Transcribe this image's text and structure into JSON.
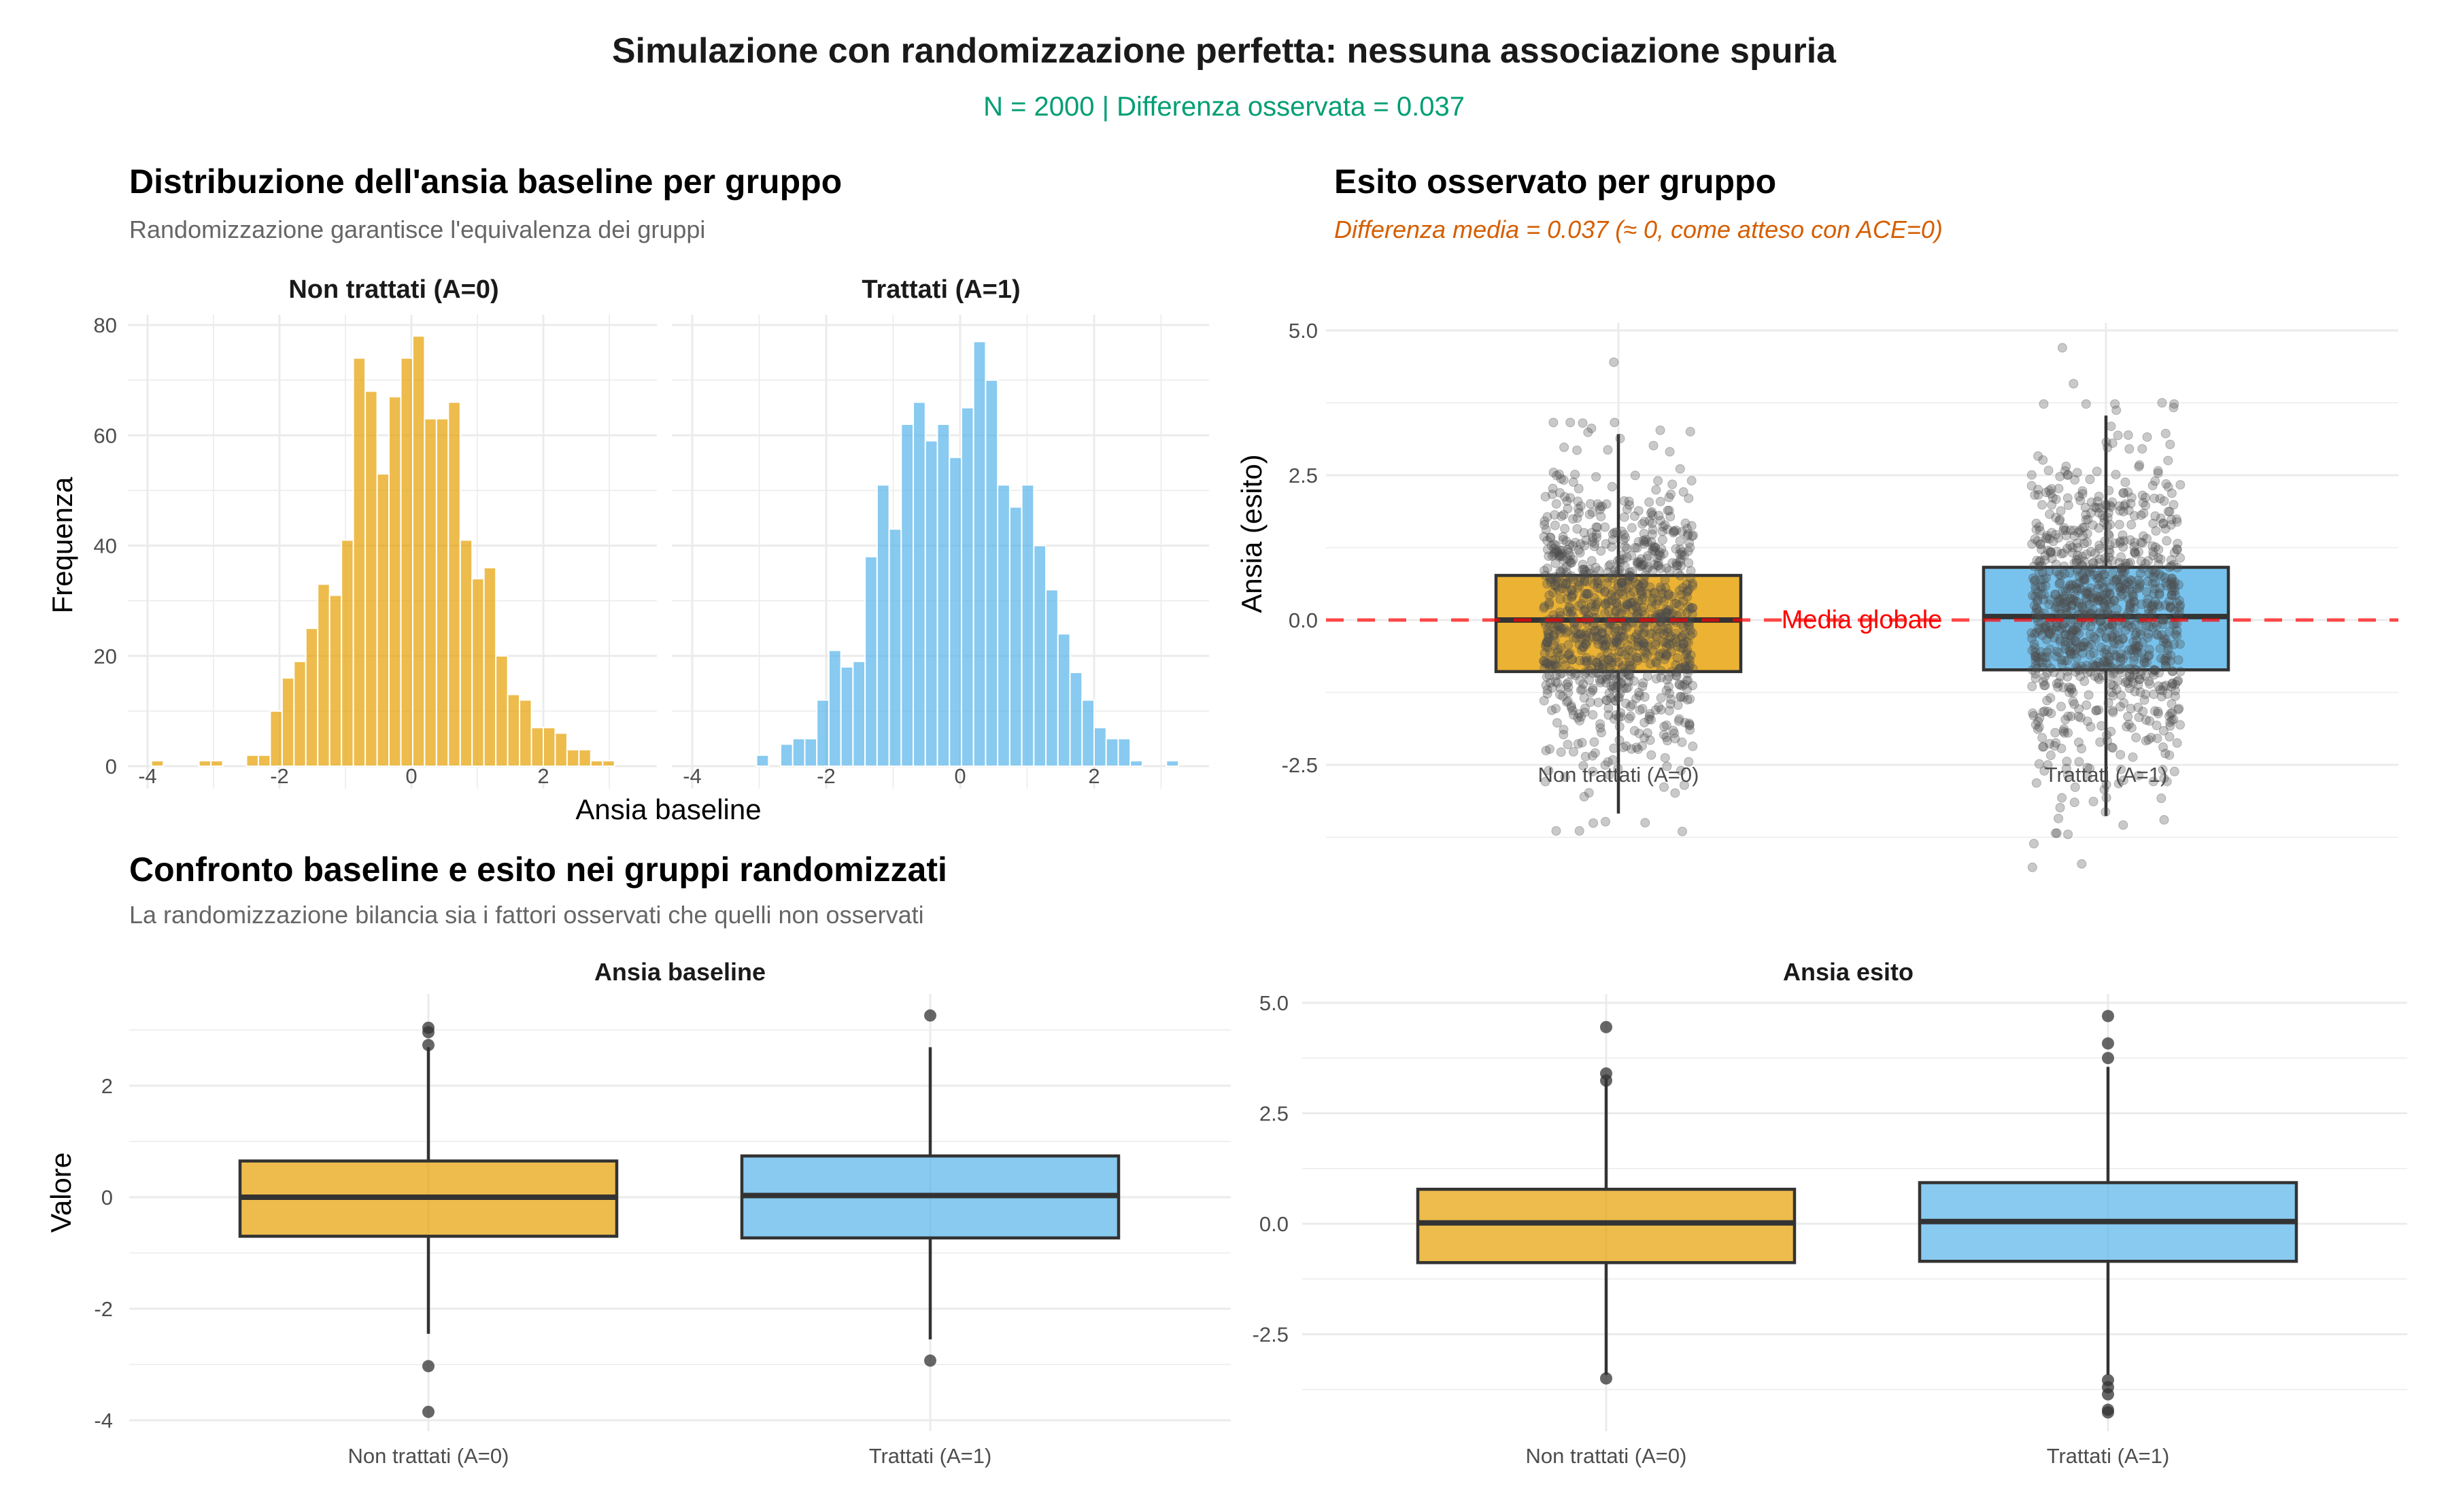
{
  "header": {
    "title": "Simulazione con randomizzazione perfetta: nessuna associazione spuria",
    "subtitle": "N = 2000 | Differenza osservata = 0.037"
  },
  "colors": {
    "untreated": "#E69F00",
    "treated": "#56B4E9",
    "subtitle_green": "#009E73",
    "subtitle_orange": "#D55E00",
    "mean_line": "#FF0000",
    "points": "#4d4d4d"
  },
  "chart_data": [
    {
      "id": "histograms",
      "type": "bar",
      "title": "Distribuzione dell'ansia baseline per gruppo",
      "subtitle": "Randomizzazione garantisce l'equivalenza dei gruppi",
      "xlabel": "Ansia baseline",
      "ylabel": "Frequenza",
      "xlim": [
        -4.3,
        3.5
      ],
      "ylim": [
        0,
        80
      ],
      "xticks": [
        "-4",
        "-2",
        "0",
        "2"
      ],
      "xtick_values": [
        -4,
        -2,
        0,
        2
      ],
      "yticks": [
        "0",
        "20",
        "40",
        "60",
        "80"
      ],
      "ytick_values": [
        0,
        20,
        40,
        60,
        80
      ],
      "grid": true,
      "bin_width": 0.18,
      "facets": [
        {
          "label": "Non trattati (A=0)",
          "group": "untreated",
          "bins": [
            {
              "x": -3.85,
              "count": 1
            },
            {
              "x": -3.67,
              "count": 0
            },
            {
              "x": -3.49,
              "count": 0
            },
            {
              "x": -3.13,
              "count": 1
            },
            {
              "x": -2.95,
              "count": 1
            },
            {
              "x": -2.77,
              "count": 0
            },
            {
              "x": -2.59,
              "count": 0
            },
            {
              "x": -2.41,
              "count": 2
            },
            {
              "x": -2.23,
              "count": 2
            },
            {
              "x": -2.05,
              "count": 10
            },
            {
              "x": -1.87,
              "count": 16
            },
            {
              "x": -1.69,
              "count": 19
            },
            {
              "x": -1.51,
              "count": 25
            },
            {
              "x": -1.33,
              "count": 33
            },
            {
              "x": -1.15,
              "count": 31
            },
            {
              "x": -0.97,
              "count": 41
            },
            {
              "x": -0.79,
              "count": 74
            },
            {
              "x": -0.61,
              "count": 68
            },
            {
              "x": -0.43,
              "count": 53
            },
            {
              "x": -0.25,
              "count": 67
            },
            {
              "x": -0.07,
              "count": 74
            },
            {
              "x": 0.11,
              "count": 78
            },
            {
              "x": 0.29,
              "count": 63
            },
            {
              "x": 0.47,
              "count": 63
            },
            {
              "x": 0.65,
              "count": 66
            },
            {
              "x": 0.83,
              "count": 41
            },
            {
              "x": 1.01,
              "count": 34
            },
            {
              "x": 1.19,
              "count": 36
            },
            {
              "x": 1.37,
              "count": 20
            },
            {
              "x": 1.55,
              "count": 13
            },
            {
              "x": 1.73,
              "count": 12
            },
            {
              "x": 1.91,
              "count": 7
            },
            {
              "x": 2.09,
              "count": 7
            },
            {
              "x": 2.27,
              "count": 6
            },
            {
              "x": 2.45,
              "count": 3
            },
            {
              "x": 2.63,
              "count": 3
            },
            {
              "x": 2.81,
              "count": 1
            },
            {
              "x": 2.99,
              "count": 1
            },
            {
              "x": 3.17,
              "count": 0
            }
          ]
        },
        {
          "label": "Trattati (A=1)",
          "group": "treated",
          "bins": [
            {
              "x": -3.85,
              "count": 0
            },
            {
              "x": -3.67,
              "count": 0
            },
            {
              "x": -3.49,
              "count": 0
            },
            {
              "x": -3.31,
              "count": 0
            },
            {
              "x": -3.13,
              "count": 0
            },
            {
              "x": -2.95,
              "count": 2
            },
            {
              "x": -2.77,
              "count": 0
            },
            {
              "x": -2.59,
              "count": 4
            },
            {
              "x": -2.41,
              "count": 5
            },
            {
              "x": -2.23,
              "count": 5
            },
            {
              "x": -2.05,
              "count": 12
            },
            {
              "x": -1.87,
              "count": 21
            },
            {
              "x": -1.69,
              "count": 18
            },
            {
              "x": -1.51,
              "count": 19
            },
            {
              "x": -1.33,
              "count": 38
            },
            {
              "x": -1.15,
              "count": 51
            },
            {
              "x": -0.97,
              "count": 43
            },
            {
              "x": -0.79,
              "count": 62
            },
            {
              "x": -0.61,
              "count": 66
            },
            {
              "x": -0.43,
              "count": 59
            },
            {
              "x": -0.25,
              "count": 62
            },
            {
              "x": -0.07,
              "count": 56
            },
            {
              "x": 0.11,
              "count": 65
            },
            {
              "x": 0.29,
              "count": 77
            },
            {
              "x": 0.47,
              "count": 70
            },
            {
              "x": 0.65,
              "count": 51
            },
            {
              "x": 0.83,
              "count": 47
            },
            {
              "x": 1.01,
              "count": 51
            },
            {
              "x": 1.19,
              "count": 40
            },
            {
              "x": 1.37,
              "count": 32
            },
            {
              "x": 1.55,
              "count": 24
            },
            {
              "x": 1.73,
              "count": 17
            },
            {
              "x": 1.91,
              "count": 12
            },
            {
              "x": 2.09,
              "count": 7
            },
            {
              "x": 2.27,
              "count": 5
            },
            {
              "x": 2.45,
              "count": 5
            },
            {
              "x": 2.63,
              "count": 1
            },
            {
              "x": 2.81,
              "count": 0
            },
            {
              "x": 2.99,
              "count": 0
            },
            {
              "x": 3.17,
              "count": 1
            },
            {
              "x": 3.35,
              "count": 0
            }
          ]
        }
      ]
    },
    {
      "id": "outcome-jitter",
      "type": "scatter",
      "title": "Esito osservato per gruppo",
      "subtitle": "Differenza media = 0.037 (≈ 0, come atteso con ACE=0)",
      "xlabel": "",
      "ylabel": "Ansia (esito)",
      "categories": [
        "Non trattati (A=0)",
        "Trattati (A=1)"
      ],
      "ylim": [
        -4.5,
        5.0
      ],
      "yticks": [
        "-2.5",
        "0.0",
        "2.5",
        "5.0"
      ],
      "ytick_values": [
        -2.5,
        0,
        2.5,
        5.0
      ],
      "grid": true,
      "reference_line": {
        "y": 0.0,
        "label": "Media globale",
        "style": "dashed"
      },
      "points_per_group": 1000,
      "boxes": [
        {
          "group": "untreated",
          "q1": -0.89,
          "median": 0.0,
          "q3": 0.77,
          "whisker_low": -3.34,
          "whisker_high": 3.21,
          "extremes": [
            4.45,
            3.4,
            3.24,
            -3.5,
            -3.65
          ]
        },
        {
          "group": "treated",
          "q1": -0.86,
          "median": 0.06,
          "q3": 0.91,
          "whisker_low": -3.38,
          "whisker_high": 3.53,
          "extremes": [
            4.7,
            4.08,
            3.75,
            -3.54,
            -3.7,
            -3.86,
            -4.21,
            -4.27
          ]
        }
      ]
    },
    {
      "id": "baseline-box",
      "type": "box",
      "section_title": "Confronto baseline e esito nei gruppi randomizzati",
      "section_subtitle": "La randomizzazione bilancia sia i fattori osservati che quelli non osservati",
      "title": "Ansia baseline",
      "ylabel": "Valore",
      "categories": [
        "Non trattati (A=0)",
        "Trattati (A=1)"
      ],
      "ylim": [
        -4.1,
        3.5
      ],
      "yticks": [
        "-4",
        "-2",
        "0",
        "2"
      ],
      "ytick_values": [
        -4,
        -2,
        0,
        2
      ],
      "grid": true,
      "boxes": [
        {
          "group": "untreated",
          "q1": -0.7,
          "median": 0.0,
          "q3": 0.65,
          "whisker_low": -2.45,
          "whisker_high": 2.69,
          "outliers": [
            3.04,
            2.96,
            2.73,
            -3.03,
            -3.85
          ]
        },
        {
          "group": "treated",
          "q1": -0.73,
          "median": 0.03,
          "q3": 0.74,
          "whisker_low": -2.55,
          "whisker_high": 2.69,
          "outliers": [
            3.26,
            -2.93
          ]
        }
      ]
    },
    {
      "id": "outcome-box",
      "type": "box",
      "title": "Ansia esito",
      "ylabel": "",
      "categories": [
        "Non trattati (A=0)",
        "Trattati (A=1)"
      ],
      "ylim": [
        -4.5,
        5.0
      ],
      "yticks": [
        "-2.5",
        "0.0",
        "2.5",
        "5.0"
      ],
      "ytick_values": [
        -2.5,
        0,
        2.5,
        5.0
      ],
      "grid": true,
      "boxes": [
        {
          "group": "untreated",
          "q1": -0.88,
          "median": 0.02,
          "q3": 0.78,
          "whisker_low": -3.42,
          "whisker_high": 3.28,
          "outliers": [
            4.45,
            3.4,
            3.24,
            -3.5
          ]
        },
        {
          "group": "treated",
          "q1": -0.85,
          "median": 0.05,
          "q3": 0.93,
          "whisker_low": -3.42,
          "whisker_high": 3.55,
          "outliers": [
            4.7,
            4.08,
            3.75,
            -3.54,
            -3.7,
            -3.86,
            -4.21,
            -4.27
          ]
        }
      ]
    }
  ]
}
